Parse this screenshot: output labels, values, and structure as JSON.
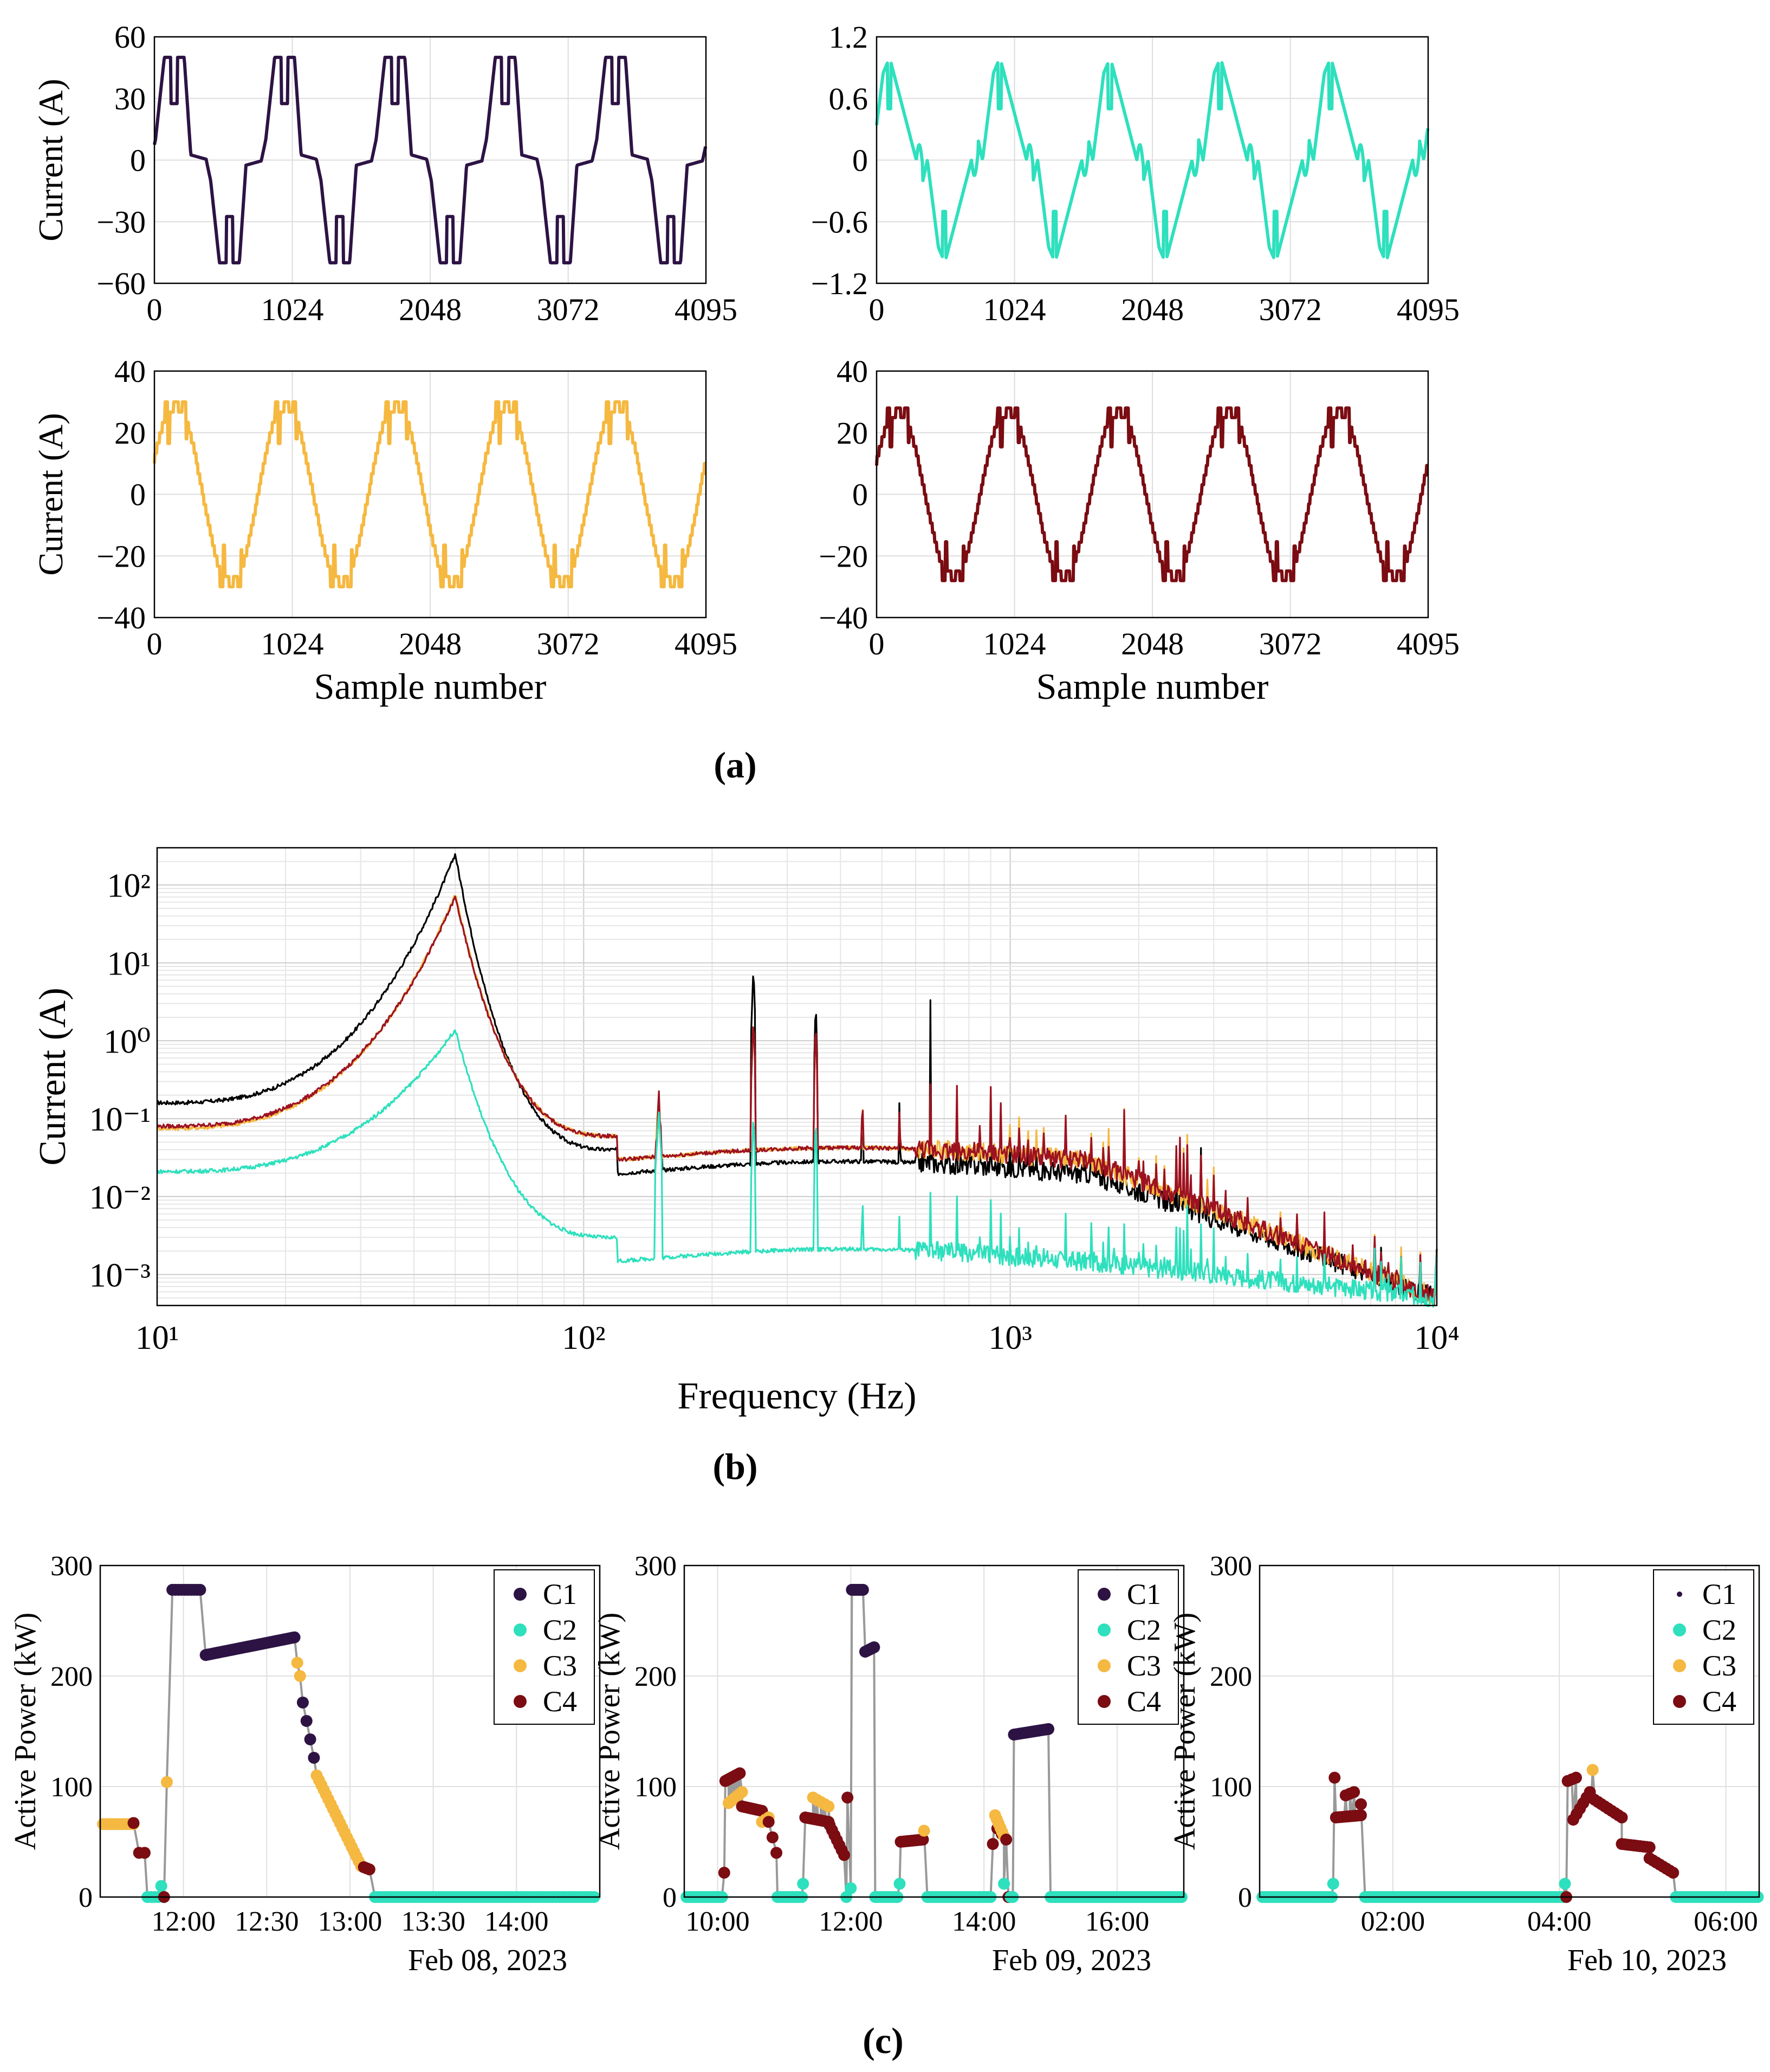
{
  "figure": {
    "panel_labels": [
      "(a)",
      "(b)",
      "(c)"
    ],
    "colors": {
      "C1": "#2d1344",
      "C2": "#2ee0bd",
      "C3": "#f5b840",
      "C4": "#7a0c12",
      "b_black": "#000000",
      "b_red": "#9c1221",
      "connector": "#999999"
    }
  },
  "chart_data": [
    {
      "id": "a1",
      "type": "line",
      "panel": "(a)",
      "xlabel": "",
      "ylabel": "Current (A)",
      "xlim": [
        0,
        4095
      ],
      "ylim": [
        -60,
        60
      ],
      "xticks": [
        0,
        1024,
        2048,
        3072,
        4095
      ],
      "xtick_labels": [
        "0",
        "1024",
        "2048",
        "3072",
        "4095"
      ],
      "yticks": [
        -60,
        -30,
        0,
        30,
        60
      ],
      "ytick_labels": [
        "−60",
        "−30",
        "0",
        "30",
        "60"
      ],
      "series": [
        {
          "name": "C1",
          "color": "#2d1344",
          "cycle_samples": 819,
          "phase": 0.03,
          "amplitude": 50,
          "shape": "double-peak with zero-crossing plateau"
        }
      ]
    },
    {
      "id": "a2",
      "type": "line",
      "panel": "(a)",
      "xlabel": "",
      "ylabel": "",
      "xlim": [
        0,
        4095
      ],
      "ylim": [
        -1.2,
        1.2
      ],
      "xticks": [
        0,
        1024,
        2048,
        3072,
        4095
      ],
      "xtick_labels": [
        "0",
        "1024",
        "2048",
        "3072",
        "4095"
      ],
      "yticks": [
        -1.2,
        -0.6,
        0,
        0.6,
        1.2
      ],
      "ytick_labels": [
        "−1.2",
        "−0.6",
        "0",
        "0.6",
        "1.2"
      ],
      "series": [
        {
          "name": "C2",
          "color": "#2ee0bd",
          "cycle_samples": 819,
          "phase": 0.04,
          "amplitude": 1.0,
          "shape": "sawtooth with spikes"
        }
      ]
    },
    {
      "id": "a3",
      "type": "line",
      "panel": "(a)",
      "xlabel": "Sample number",
      "ylabel": "Current (A)",
      "xlim": [
        0,
        4095
      ],
      "ylim": [
        -40,
        40
      ],
      "xticks": [
        0,
        1024,
        2048,
        3072,
        4095
      ],
      "xtick_labels": [
        "0",
        "1024",
        "2048",
        "3072",
        "4095"
      ],
      "yticks": [
        -40,
        -20,
        0,
        20,
        40
      ],
      "ytick_labels": [
        "−40",
        "−20",
        "0",
        "20",
        "40"
      ],
      "series": [
        {
          "name": "C3",
          "color": "#f5b840",
          "cycle_samples": 819,
          "phase": 0.06,
          "amplitude": 30,
          "shape": "stepped sine with notches"
        }
      ]
    },
    {
      "id": "a4",
      "type": "line",
      "panel": "(a)",
      "xlabel": "Sample number",
      "ylabel": "",
      "xlim": [
        0,
        4095
      ],
      "ylim": [
        -40,
        40
      ],
      "xticks": [
        0,
        1024,
        2048,
        3072,
        4095
      ],
      "xtick_labels": [
        "0",
        "1024",
        "2048",
        "3072",
        "4095"
      ],
      "yticks": [
        -40,
        -20,
        0,
        20,
        40
      ],
      "ytick_labels": [
        "−40",
        "−20",
        "0",
        "20",
        "40"
      ],
      "series": [
        {
          "name": "C4",
          "color": "#7a0c12",
          "cycle_samples": 819,
          "phase": 0.06,
          "amplitude": 28,
          "shape": "stepped sine with notches"
        }
      ]
    },
    {
      "id": "b",
      "type": "line",
      "panel": "(b)",
      "scale": "log-log",
      "xlabel": "Frequency (Hz)",
      "ylabel": "Current (A)",
      "xlim": [
        10,
        10000
      ],
      "ylim": [
        0.0004,
        300
      ],
      "xtick_labels": [
        "10¹",
        "10²",
        "10³",
        "10⁴"
      ],
      "xtick_values": [
        10,
        100,
        1000,
        10000
      ],
      "ytick_labels": [
        "10⁻³",
        "10⁻²",
        "10⁻¹",
        "10⁰",
        "10¹",
        "10²"
      ],
      "ytick_values": [
        0.001,
        0.01,
        0.1,
        1,
        10,
        100
      ],
      "fundamental_hz": 50,
      "series": [
        {
          "name": "C1",
          "color": "#000000",
          "at_10hz": 0.16,
          "peak_50hz": 250,
          "floor_1khz": 0.02,
          "floor_10khz": 0.0005,
          "harmonic_peaks": {
            "250": 9,
            "350": 3.5,
            "650": 3.5
          }
        },
        {
          "name": "C3",
          "color": "#f5b840",
          "at_10hz": 0.075,
          "peak_50hz": 75,
          "floor_1khz": 0.03,
          "floor_10khz": 0.0005,
          "harmonic_peaks": {
            "250": 2,
            "350": 2
          }
        },
        {
          "name": "C4",
          "color": "#9c1221",
          "at_10hz": 0.08,
          "peak_50hz": 70,
          "floor_1khz": 0.03,
          "floor_10khz": 0.0005,
          "harmonic_peaks": {
            "250": 2,
            "350": 2
          }
        },
        {
          "name": "C2",
          "color": "#2ee0bd",
          "at_10hz": 0.021,
          "peak_50hz": 1.4,
          "floor_1khz": 0.0015,
          "floor_10khz": 0.0005,
          "harmonic_peaks": {
            "150": 0.13,
            "250": 0.12,
            "350": 0.12
          }
        }
      ]
    },
    {
      "id": "c1",
      "type": "scatter",
      "panel": "(c)",
      "ylabel": "Active Power (kW)",
      "date_label": "Feb 08, 2023",
      "xlim_minutes": [
        690,
        870
      ],
      "ylim": [
        0,
        300
      ],
      "xtick_labels": [
        "12:00",
        "12:30",
        "13:00",
        "13:30",
        "14:00"
      ],
      "xtick_minutes": [
        720,
        750,
        780,
        810,
        840
      ],
      "yticks": [
        0,
        100,
        200,
        300
      ],
      "legend": [
        "C1",
        "C2",
        "C3",
        "C4"
      ],
      "legend_position": "top-right",
      "segments": [
        {
          "cluster": "C3",
          "t0": 691,
          "t1": 702,
          "p0": 66,
          "p1": 66,
          "n": 12
        },
        {
          "cluster": "C4",
          "t0": 702,
          "t1": 702,
          "p0": 67,
          "p1": 67,
          "n": 1
        },
        {
          "cluster": "C4",
          "t0": 704,
          "t1": 706,
          "p0": 40,
          "p1": 40,
          "n": 2
        },
        {
          "cluster": "C2",
          "t0": 707,
          "t1": 711,
          "p0": 0,
          "p1": 0,
          "n": 4
        },
        {
          "cluster": "C2",
          "t0": 712,
          "t1": 712,
          "p0": 10,
          "p1": 10,
          "n": 1
        },
        {
          "cluster": "C4",
          "t0": 713,
          "t1": 713,
          "p0": 0,
          "p1": 0,
          "n": 1
        },
        {
          "cluster": "C3",
          "t0": 714,
          "t1": 714,
          "p0": 104,
          "p1": 104,
          "n": 1
        },
        {
          "cluster": "C1",
          "t0": 716,
          "t1": 726,
          "p0": 278,
          "p1": 278,
          "n": 10
        },
        {
          "cluster": "C1",
          "t0": 728,
          "t1": 760,
          "p0": 219,
          "p1": 235,
          "n": 40
        },
        {
          "cluster": "C3",
          "t0": 761,
          "t1": 762,
          "p0": 212,
          "p1": 200,
          "n": 2
        },
        {
          "cluster": "C1",
          "t0": 763,
          "t1": 767,
          "p0": 176,
          "p1": 126,
          "n": 4
        },
        {
          "cluster": "C3",
          "t0": 768,
          "t1": 784,
          "p0": 110,
          "p1": 28,
          "n": 20
        },
        {
          "cluster": "C4",
          "t0": 785,
          "t1": 787,
          "p0": 27,
          "p1": 25,
          "n": 3
        },
        {
          "cluster": "C2",
          "t0": 789,
          "t1": 868,
          "p0": 0,
          "p1": 0,
          "n": 70
        }
      ]
    },
    {
      "id": "c2",
      "type": "scatter",
      "panel": "(c)",
      "ylabel": "Active Power (kW)",
      "date_label": "Feb 09, 2023",
      "xlim_minutes": [
        570,
        1020
      ],
      "ylim": [
        0,
        300
      ],
      "xtick_labels": [
        "10:00",
        "12:00",
        "14:00",
        "16:00"
      ],
      "xtick_minutes": [
        600,
        720,
        840,
        960
      ],
      "yticks": [
        0,
        100,
        200,
        300
      ],
      "legend": [
        "C1",
        "C2",
        "C3",
        "C4"
      ],
      "legend_position": "top-right",
      "segments": [
        {
          "cluster": "C2",
          "t0": 572,
          "t1": 604,
          "p0": 0,
          "p1": 0,
          "n": 20
        },
        {
          "cluster": "C4",
          "t0": 606,
          "t1": 607,
          "p0": 22,
          "p1": 22,
          "n": 1
        },
        {
          "cluster": "C4",
          "t0": 607,
          "t1": 620,
          "p0": 105,
          "p1": 112,
          "n": 10
        },
        {
          "cluster": "C3",
          "t0": 610,
          "t1": 622,
          "p0": 85,
          "p1": 95,
          "n": 6
        },
        {
          "cluster": "C4",
          "t0": 622,
          "t1": 640,
          "p0": 82,
          "p1": 78,
          "n": 9
        },
        {
          "cluster": "C3",
          "t0": 640,
          "t1": 646,
          "p0": 68,
          "p1": 72,
          "n": 3
        },
        {
          "cluster": "C4",
          "t0": 646,
          "t1": 653,
          "p0": 68,
          "p1": 40,
          "n": 3
        },
        {
          "cluster": "C2",
          "t0": 654,
          "t1": 676,
          "p0": 0,
          "p1": 0,
          "n": 12
        },
        {
          "cluster": "C2",
          "t0": 677,
          "t1": 677,
          "p0": 12,
          "p1": 12,
          "n": 1
        },
        {
          "cluster": "C4",
          "t0": 679,
          "t1": 700,
          "p0": 72,
          "p1": 68,
          "n": 10
        },
        {
          "cluster": "C3",
          "t0": 686,
          "t1": 700,
          "p0": 90,
          "p1": 82,
          "n": 5
        },
        {
          "cluster": "C4",
          "t0": 701,
          "t1": 714,
          "p0": 65,
          "p1": 38,
          "n": 7
        },
        {
          "cluster": "C4",
          "t0": 717,
          "t1": 719,
          "p0": 90,
          "p1": 90,
          "n": 1
        },
        {
          "cluster": "C2",
          "t0": 716,
          "t1": 720,
          "p0": 0,
          "p1": 8,
          "n": 2
        },
        {
          "cluster": "C1",
          "t0": 721,
          "t1": 731,
          "p0": 278,
          "p1": 278,
          "n": 8
        },
        {
          "cluster": "C1",
          "t0": 733,
          "t1": 741,
          "p0": 222,
          "p1": 226,
          "n": 6
        },
        {
          "cluster": "C2",
          "t0": 742,
          "t1": 762,
          "p0": 0,
          "p1": 0,
          "n": 10
        },
        {
          "cluster": "C2",
          "t0": 764,
          "t1": 764,
          "p0": 12,
          "p1": 12,
          "n": 1
        },
        {
          "cluster": "C4",
          "t0": 765,
          "t1": 785,
          "p0": 50,
          "p1": 52,
          "n": 9
        },
        {
          "cluster": "C3",
          "t0": 786,
          "t1": 788,
          "p0": 60,
          "p1": 60,
          "n": 1
        },
        {
          "cluster": "C2",
          "t0": 789,
          "t1": 846,
          "p0": 0,
          "p1": 0,
          "n": 30
        },
        {
          "cluster": "C4",
          "t0": 848,
          "t1": 850,
          "p0": 48,
          "p1": 48,
          "n": 1
        },
        {
          "cluster": "C3",
          "t0": 850,
          "t1": 858,
          "p0": 74,
          "p1": 55,
          "n": 6
        },
        {
          "cluster": "C4",
          "t0": 852,
          "t1": 860,
          "p0": 62,
          "p1": 52,
          "n": 3
        },
        {
          "cluster": "C2",
          "t0": 858,
          "t1": 862,
          "p0": 12,
          "p1": 12,
          "n": 1
        },
        {
          "cluster": "C4",
          "t0": 862,
          "t1": 863,
          "p0": 0,
          "p1": 0,
          "n": 1
        },
        {
          "cluster": "C2",
          "t0": 864,
          "t1": 866,
          "p0": 0,
          "p1": 0,
          "n": 2
        },
        {
          "cluster": "C1",
          "t0": 867,
          "t1": 898,
          "p0": 147,
          "p1": 152,
          "n": 14
        },
        {
          "cluster": "C2",
          "t0": 900,
          "t1": 1018,
          "p0": 0,
          "p1": 0,
          "n": 60
        }
      ]
    },
    {
      "id": "c3",
      "type": "scatter",
      "panel": "(c)",
      "ylabel": "Active Power (kW)",
      "date_label": "Feb 10, 2023",
      "xlim_minutes": [
        24,
        384
      ],
      "ylim": [
        0,
        300
      ],
      "xtick_labels": [
        "02:00",
        "04:00",
        "06:00"
      ],
      "xtick_minutes": [
        120,
        240,
        360
      ],
      "yticks": [
        0,
        100,
        200,
        300
      ],
      "legend": [
        "C1",
        "C2",
        "C3",
        "C4"
      ],
      "legend_position": "top-right",
      "segments": [
        {
          "cluster": "C2",
          "t0": 26,
          "t1": 76,
          "p0": 0,
          "p1": 0,
          "n": 30
        },
        {
          "cluster": "C2",
          "t0": 77,
          "t1": 77,
          "p0": 12,
          "p1": 12,
          "n": 1
        },
        {
          "cluster": "C4",
          "t0": 78,
          "t1": 78,
          "p0": 108,
          "p1": 108,
          "n": 1
        },
        {
          "cluster": "C4",
          "t0": 79,
          "t1": 97,
          "p0": 72,
          "p1": 74,
          "n": 10
        },
        {
          "cluster": "C4",
          "t0": 86,
          "t1": 92,
          "p0": 92,
          "p1": 95,
          "n": 3
        },
        {
          "cluster": "C4",
          "t0": 97,
          "t1": 99,
          "p0": 84,
          "p1": 84,
          "n": 1
        },
        {
          "cluster": "C2",
          "t0": 100,
          "t1": 243,
          "p0": 0,
          "p1": 0,
          "n": 80
        },
        {
          "cluster": "C2",
          "t0": 244,
          "t1": 244,
          "p0": 12,
          "p1": 12,
          "n": 1
        },
        {
          "cluster": "C4",
          "t0": 245,
          "t1": 245,
          "p0": 0,
          "p1": 0,
          "n": 1
        },
        {
          "cluster": "C4",
          "t0": 246,
          "t1": 252,
          "p0": 105,
          "p1": 108,
          "n": 3
        },
        {
          "cluster": "C4",
          "t0": 250,
          "t1": 262,
          "p0": 70,
          "p1": 95,
          "n": 6
        },
        {
          "cluster": "C3",
          "t0": 264,
          "t1": 264,
          "p0": 115,
          "p1": 115,
          "n": 1
        },
        {
          "cluster": "C4",
          "t0": 263,
          "t1": 285,
          "p0": 90,
          "p1": 72,
          "n": 10
        },
        {
          "cluster": "C4",
          "t0": 285,
          "t1": 305,
          "p0": 48,
          "p1": 45,
          "n": 10
        },
        {
          "cluster": "C4",
          "t0": 305,
          "t1": 322,
          "p0": 35,
          "p1": 22,
          "n": 8
        },
        {
          "cluster": "C2",
          "t0": 324,
          "t1": 383,
          "p0": 0,
          "p1": 0,
          "n": 35
        }
      ]
    }
  ]
}
